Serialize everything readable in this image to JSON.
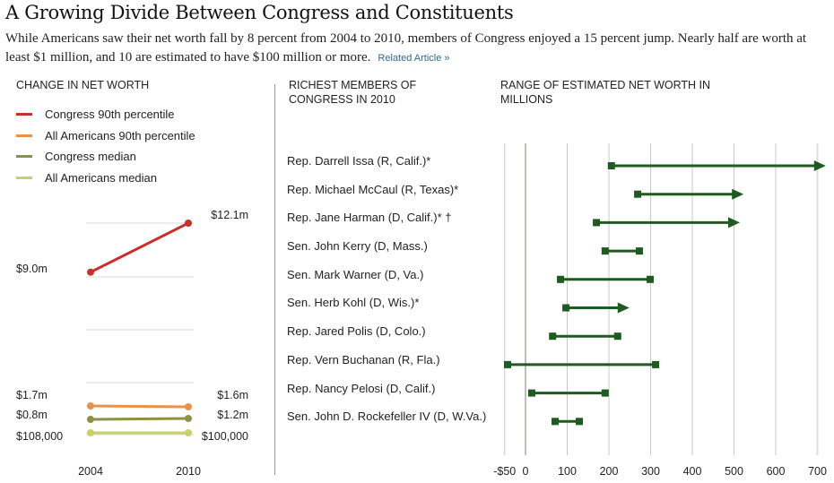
{
  "header": {
    "title": "A Growing Divide Between Congress and Constituents",
    "dek": "While Americans saw their net worth fall by 8 percent from 2004 to 2010, members of Congress enjoyed a 15 percent jump. Nearly half are worth at least $1 million, and 10 are estimated to have $100 million or more.",
    "related_link": "Related Article »"
  },
  "colors": {
    "congress_90th": "#c8302c",
    "americans_90th": "#e8914a",
    "congress_median": "#8e9046",
    "americans_median": "#c8d067",
    "range_bar": "#1f5a1f",
    "link": "#326891"
  },
  "chart_data": [
    {
      "type": "line",
      "title": "CHANGE IN NET WORTH",
      "x": [
        "2004",
        "2010"
      ],
      "legend_position": "top-left",
      "series": [
        {
          "name": "Congress 90th percentile",
          "values": [
            9.0,
            12.1
          ],
          "labels": [
            "$9.0m",
            "$12.1m"
          ],
          "color_key": "congress_90th"
        },
        {
          "name": "All Americans 90th percentile",
          "values": [
            1.7,
            1.6
          ],
          "labels": [
            "$1.7m",
            "$1.6m"
          ],
          "color_key": "americans_90th"
        },
        {
          "name": "Congress median",
          "values": [
            0.8,
            1.2
          ],
          "labels": [
            "$0.8m",
            "$1.2m"
          ],
          "color_key": "congress_median"
        },
        {
          "name": "All Americans median",
          "values": [
            0.108,
            0.1
          ],
          "labels": [
            "$108,000",
            "$100,000"
          ],
          "color_key": "americans_median"
        }
      ],
      "grid": true
    },
    {
      "type": "range",
      "title": "RANGE OF ESTIMATED NET WORTH IN MILLIONS",
      "category_header": "RICHEST MEMBERS OF CONGRESS IN 2010",
      "xlim": [
        -50,
        700
      ],
      "x_ticks": [
        -50,
        0,
        100,
        200,
        300,
        400,
        500,
        600,
        700
      ],
      "x_tick_labels": [
        "-$50",
        "0",
        "100",
        "200",
        "300",
        "400",
        "500",
        "600",
        "700"
      ],
      "grid": true,
      "members": [
        {
          "name": "Rep. Darrell Issa (R, Calif.)*",
          "min": 206,
          "max": 720,
          "open_ended": true
        },
        {
          "name": "Rep. Michael McCaul (R, Texas)*",
          "min": 269,
          "max": 523,
          "open_ended": true
        },
        {
          "name": "Rep. Jane Harman (D, Calif.)* †",
          "min": 170,
          "max": 514,
          "open_ended": true
        },
        {
          "name": "Sen. John Kerry (D, Mass.)",
          "min": 191,
          "max": 273,
          "open_ended": false
        },
        {
          "name": "Sen. Mark Warner (D, Va.)",
          "min": 84,
          "max": 299,
          "open_ended": false
        },
        {
          "name": "Sen. Herb Kohl (D, Wis.)*",
          "min": 97,
          "max": 249,
          "open_ended": true
        },
        {
          "name": "Rep. Jared Polis (D, Colo.)",
          "min": 65,
          "max": 221,
          "open_ended": false
        },
        {
          "name": "Rep. Vern Buchanan (R, Fla.)",
          "min": -43,
          "max": 312,
          "open_ended": false
        },
        {
          "name": "Rep. Nancy Pelosi (D, Calif.)",
          "min": 15,
          "max": 191,
          "open_ended": false
        },
        {
          "name": "Sen. John D. Rockefeller IV (D, W.Va.)",
          "min": 71,
          "max": 129,
          "open_ended": false
        }
      ]
    }
  ]
}
